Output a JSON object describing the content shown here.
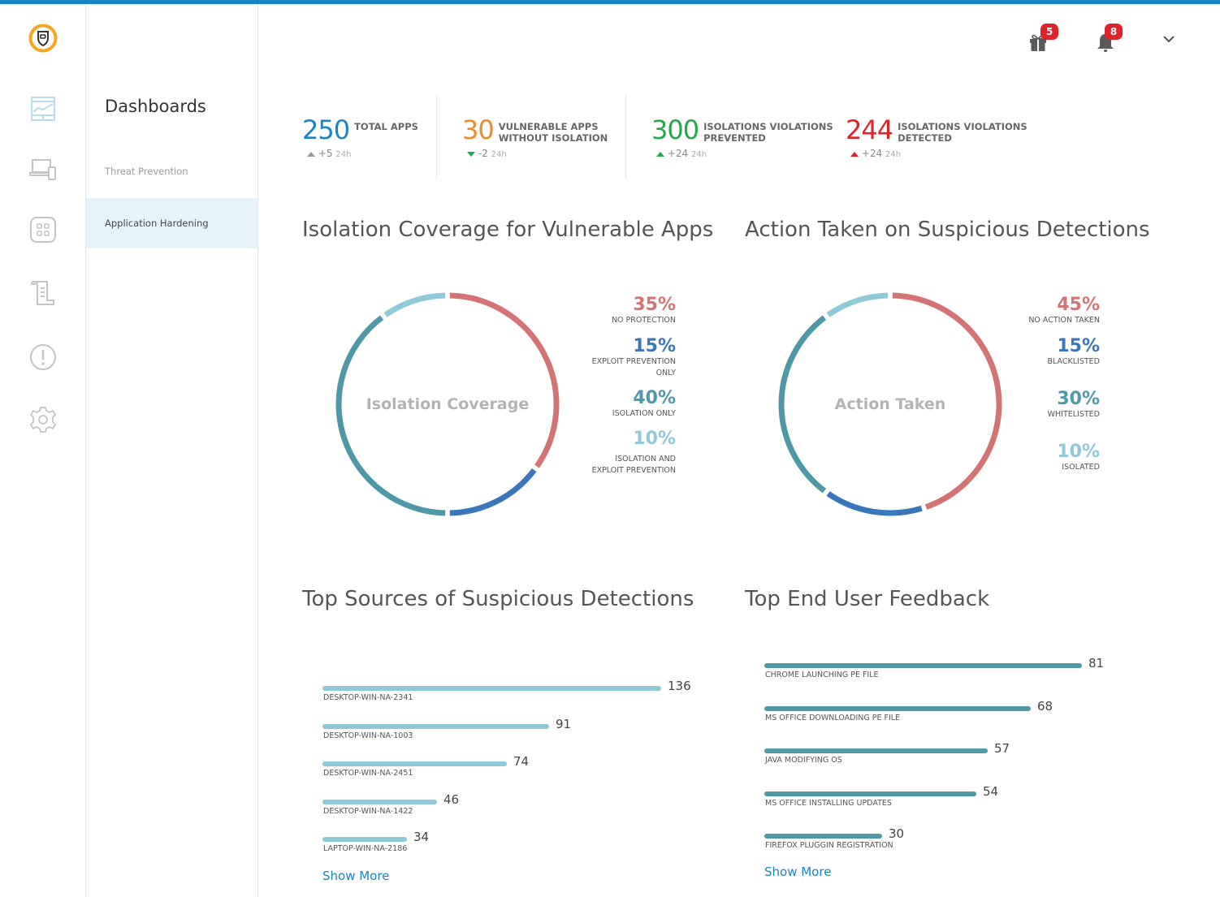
{
  "header": {
    "gift_badge": "5",
    "bell_badge": "8"
  },
  "rail": {
    "icons": [
      "logo-icon",
      "dashboard-icon",
      "devices-icon",
      "apps-icon",
      "policies-icon",
      "alerts-icon",
      "settings-icon"
    ]
  },
  "subnav": {
    "title": "Dashboards",
    "items": [
      {
        "label": "Threat Prevention",
        "active": false
      },
      {
        "label": "Application Hardening",
        "active": true
      }
    ]
  },
  "stats": [
    {
      "value": "250",
      "label_line1": "TOTAL APPS",
      "label_line2": "",
      "delta": "+5",
      "period": "24h",
      "direction": "up",
      "color": "#1a85c4",
      "arrow_color": "#999999"
    },
    {
      "value": "30",
      "label_line1": "VULNERABLE APPS",
      "label_line2": "WITHOUT ISOLATION",
      "delta": "-2",
      "period": "24h",
      "direction": "down",
      "color": "#f08a24",
      "arrow_color": "#23a74a"
    },
    {
      "value": "300",
      "label_line1": "ISOLATIONS VIOLATIONS",
      "label_line2": "PREVENTED",
      "delta": "+24",
      "period": "24h",
      "direction": "up",
      "color": "#23a74a",
      "arrow_color": "#23a74a"
    },
    {
      "value": "244",
      "label_line1": "ISOLATIONS VIOLATIONS",
      "label_line2": "DETECTED",
      "delta": "+24",
      "period": "24h",
      "direction": "up",
      "color": "#e0222a",
      "arrow_color": "#e0222a"
    }
  ],
  "chart_data": [
    {
      "type": "pie",
      "title": "Isolation Coverage for Vulnerable Apps",
      "center_label": "Isolation Coverage",
      "categories": [
        "NO PROTECTION",
        "EXPLOIT PREVENTION ONLY",
        "ISOLATION ONLY",
        "ISOLATION AND EXPLOIT PREVENTION"
      ],
      "values": [
        35,
        15,
        40,
        10
      ],
      "value_labels": [
        "35%",
        "15%",
        "40%",
        "10%"
      ],
      "colors": [
        "#d47374",
        "#3b76bb",
        "#4f98a7",
        "#8ec8d9"
      ]
    },
    {
      "type": "pie",
      "title": "Action Taken on Suspicious Detections",
      "center_label": "Action Taken",
      "categories": [
        "NO ACTION TAKEN",
        "BLACKLISTED",
        "WHITELISTED",
        "ISOLATED"
      ],
      "values": [
        45,
        15,
        30,
        10
      ],
      "value_labels": [
        "45%",
        "15%",
        "30%",
        "10%"
      ],
      "colors": [
        "#d47374",
        "#3b76bb",
        "#4f98a7",
        "#8ec8d9"
      ]
    },
    {
      "type": "bar",
      "orientation": "horizontal",
      "title": "Top Sources of Suspicious Detections",
      "categories": [
        "DESKTOP-WIN-NA-2341",
        "DESKTOP-WIN-NA-1003",
        "DESKTOP-WIN-NA-2451",
        "DESKTOP-WIN-NA-1422",
        "LAPTOP-WIN-NA-2186"
      ],
      "values": [
        136,
        91,
        74,
        46,
        34
      ],
      "max": 136,
      "color": "#8ec8d9",
      "link": "Show More"
    },
    {
      "type": "bar",
      "orientation": "horizontal",
      "title": "Top End User Feedback",
      "categories": [
        "CHROME LAUNCHING PE FILE",
        "MS OFFICE DOWNLOADING PE FILE",
        "JAVA MODIFYING OS",
        "MS OFFICE INSTALLING UPDATES",
        "FIREFOX PLUGGIN REGISTRATION"
      ],
      "values": [
        81,
        68,
        57,
        54,
        30
      ],
      "max": 81,
      "color": "#4f98a7",
      "link": "Show More"
    }
  ]
}
